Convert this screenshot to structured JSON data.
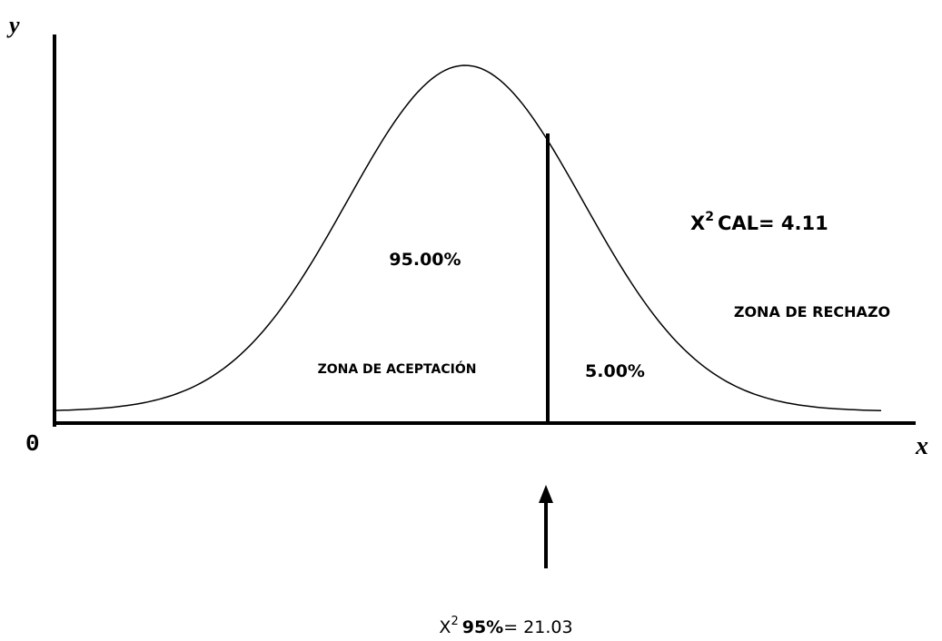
{
  "axes": {
    "y_label": "y",
    "origin_label": "0",
    "x_label": "x"
  },
  "regions": {
    "acceptance_percent": "95.00%",
    "acceptance_label": "ZONA DE ACEPTACIÓN",
    "rejection_percent": "5.00%",
    "rejection_label": "ZONA DE RECHAZO"
  },
  "calculated": {
    "base": "X",
    "sup": "2",
    "rest": "CAL= 4.11"
  },
  "critical": {
    "base": "X",
    "sup": "2",
    "bold": "95%",
    "rest": "= 21.03"
  }
}
